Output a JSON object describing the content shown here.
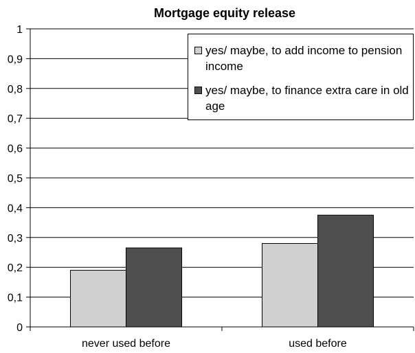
{
  "chart_data": {
    "type": "bar",
    "title": "Mortgage equity release",
    "categories": [
      "never used before",
      "used before"
    ],
    "series": [
      {
        "name": "yes/ maybe, to add income to pension income",
        "values": [
          0.19,
          0.28
        ],
        "color": "#d0d0d0"
      },
      {
        "name": "yes/ maybe, to finance extra care in old age",
        "values": [
          0.265,
          0.375
        ],
        "color": "#4f4f4f"
      }
    ],
    "ylim": [
      0,
      1
    ],
    "yticks": [
      "0",
      "0,1",
      "0,2",
      "0,3",
      "0,4",
      "0,5",
      "0,6",
      "0,7",
      "0,8",
      "0,9",
      "1"
    ],
    "xlabel": "",
    "ylabel": "",
    "grid": true,
    "legend_position": "top-right"
  }
}
